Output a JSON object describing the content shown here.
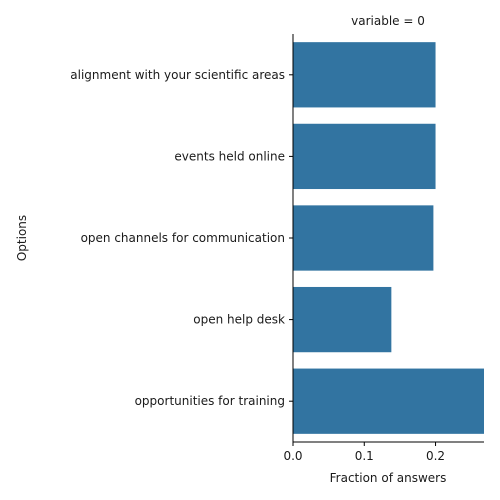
{
  "chart_data": {
    "type": "bar",
    "orientation": "horizontal",
    "title": "variable = 0",
    "xlabel": "Fraction of answers",
    "ylabel": "Options",
    "categories": [
      "alignment with your scientific areas",
      "events held online",
      "open channels for communication",
      "open help desk",
      "opportunities for training"
    ],
    "values": [
      0.2,
      0.2,
      0.197,
      0.138,
      0.268
    ],
    "xlim": [
      0.0,
      0.268
    ],
    "xticks": [
      "0.0",
      "0.1",
      "0.2"
    ],
    "xtick_values": [
      0.0,
      0.1,
      0.2
    ],
    "bar_color": "#3274a1",
    "grid": false,
    "legend": "none"
  }
}
